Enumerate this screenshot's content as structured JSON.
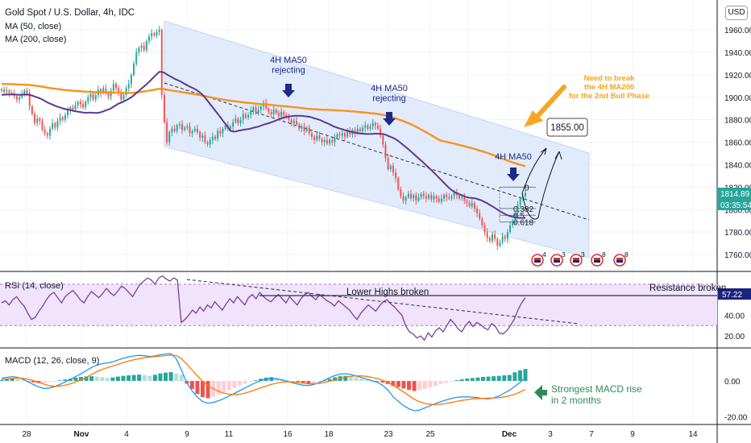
{
  "header": {
    "title": "Gold Spot / U.S. Dollar, 4h, IDC",
    "ma50_label": "MA (50, close)",
    "ma200_label": "MA (200, close)",
    "currency_button": "USD"
  },
  "colors": {
    "up": "#26a69a",
    "down": "#ef5350",
    "ma50": "#5b3a8f",
    "ma200": "#f7931a",
    "channel": "#dde8fb",
    "rsi_band": "#f0e3fb",
    "rsi_line": "#7b3fa0",
    "macd_line": "#2196f3",
    "signal_line": "#ff7700",
    "arrow_blue": "#1a2a8a",
    "annotation_orange": "#f5a623",
    "annotation_green": "#2e8b57"
  },
  "chart_data": [
    {
      "type": "candlestick",
      "title": "Gold Spot / U.S. Dollar, 4h, IDC",
      "x_ticks": [
        "28",
        "Nov",
        "4",
        "9",
        "11",
        "16",
        "18",
        "23",
        "25",
        "Dec",
        "3",
        "7",
        "9",
        "14"
      ],
      "y_ticks": [
        1960,
        1940,
        1920,
        1900,
        1880,
        1860,
        1840,
        1820,
        1800,
        1780,
        1760
      ],
      "y_tick_labels": [
        "1960.00",
        "1940.00",
        "1920.00",
        "1900.00",
        "1880.00",
        "1860.00",
        "1840.00",
        "1820.00",
        "1800.00",
        "1780.00",
        "1760.00"
      ],
      "ylim": [
        1750,
        1978
      ],
      "last_price": "1814.89",
      "countdown": "03:35:54",
      "close_series": [
        1907,
        1905,
        1906,
        1904,
        1903,
        1901,
        1898,
        1900,
        1903,
        1906,
        1904,
        1892,
        1885,
        1877,
        1881,
        1879,
        1871,
        1868,
        1866,
        1872,
        1877,
        1873,
        1879,
        1882,
        1880,
        1884,
        1888,
        1891,
        1889,
        1893,
        1896,
        1894,
        1891,
        1896,
        1900,
        1903,
        1898,
        1902,
        1907,
        1904,
        1908,
        1904,
        1901,
        1906,
        1912,
        1908,
        1904,
        1898,
        1902,
        1908,
        1912,
        1920,
        1930,
        1940,
        1944,
        1946,
        1942,
        1950,
        1954,
        1957,
        1955,
        1958,
        1960,
        1902,
        1878,
        1860,
        1869,
        1872,
        1870,
        1875,
        1876,
        1871,
        1873,
        1874,
        1868,
        1870,
        1872,
        1869,
        1864,
        1866,
        1860,
        1858,
        1862,
        1865,
        1863,
        1870,
        1868,
        1872,
        1875,
        1872,
        1874,
        1878,
        1881,
        1877,
        1880,
        1885,
        1882,
        1884,
        1888,
        1891,
        1886,
        1889,
        1892,
        1895,
        1890,
        1887,
        1885,
        1889,
        1886,
        1883,
        1887,
        1884,
        1882,
        1880,
        1877,
        1879,
        1876,
        1872,
        1874,
        1870,
        1873,
        1868,
        1865,
        1862,
        1866,
        1863,
        1860,
        1862,
        1859,
        1862,
        1860,
        1864,
        1867,
        1866,
        1868,
        1865,
        1870,
        1867,
        1871,
        1868,
        1872,
        1870,
        1873,
        1875,
        1872,
        1874,
        1877,
        1875,
        1872,
        1866,
        1858,
        1846,
        1836,
        1839,
        1833,
        1828,
        1818,
        1812,
        1808,
        1811,
        1814,
        1810,
        1813,
        1808,
        1811,
        1814,
        1812,
        1810,
        1813,
        1809,
        1812,
        1810,
        1807,
        1810,
        1813,
        1811,
        1810,
        1812,
        1815,
        1813,
        1810,
        1811,
        1808,
        1806,
        1803,
        1806,
        1801,
        1797,
        1792,
        1786,
        1780,
        1775,
        1772,
        1778,
        1774,
        1768,
        1771,
        1776,
        1774,
        1780,
        1786,
        1790,
        1797,
        1804,
        1810,
        1812,
        1815
      ],
      "series": [
        {
          "name": "MA (50, close)"
        },
        {
          "name": "MA (200, close)"
        }
      ],
      "annotations": {
        "ma50_reject_1": "4H MA50\nrejecting",
        "ma50_reject_2": "4H MA50\nrejecting",
        "ma50_label_3": "4H MA50",
        "ma200_note": "Need to break\nthe 4H MA200\nfor the 2nd Bull Phase",
        "target": "1855.00",
        "fib_0": "0",
        "fib_382": "0.382",
        "fib_5": "0.5",
        "fib_618": "0.618"
      },
      "fib_levels": [
        {
          "label": "0",
          "value": 1820
        },
        {
          "label": "0.382",
          "value": 1801
        },
        {
          "label": "0.5",
          "value": 1795
        },
        {
          "label": "0.618",
          "value": 1789
        }
      ],
      "event_numbers": [
        "4",
        "3",
        "3",
        "8",
        "8"
      ]
    },
    {
      "type": "line",
      "title": "RSI (14, close)",
      "y_ticks": [
        60,
        40,
        20
      ],
      "y_tick_labels": [
        "60.00",
        "40.00",
        "20.00"
      ],
      "band": [
        30,
        70
      ],
      "ylim": [
        10,
        80
      ],
      "last_value": "57.22",
      "annotations": {
        "lower_highs": "Lower Highs broken",
        "resistance": "Resistance broken"
      },
      "values": [
        52,
        54,
        50,
        55,
        58,
        53,
        49,
        42,
        36,
        38,
        44,
        49,
        55,
        60,
        62,
        57,
        52,
        58,
        61,
        64,
        60,
        55,
        52,
        58,
        63,
        60,
        57,
        61,
        66,
        62,
        59,
        63,
        68,
        66,
        62,
        58,
        64,
        70,
        73,
        76,
        74,
        70,
        76,
        78,
        75,
        73,
        76,
        74,
        33,
        36,
        40,
        45,
        42,
        48,
        44,
        50,
        47,
        53,
        49,
        45,
        51,
        56,
        52,
        58,
        54,
        50,
        57,
        60,
        56,
        62,
        58,
        55,
        53,
        57,
        60,
        56,
        52,
        58,
        54,
        50,
        56,
        60,
        62,
        58,
        55,
        60,
        57,
        54,
        52,
        49,
        54,
        51,
        48,
        45,
        40,
        36,
        42,
        46,
        50,
        47,
        44,
        49,
        53,
        55,
        51,
        48,
        44,
        40,
        30,
        24,
        22,
        18,
        20,
        16,
        23,
        19,
        25,
        28,
        24,
        30,
        36,
        32,
        27,
        24,
        30,
        34,
        29,
        33,
        31,
        28,
        26,
        32,
        29,
        23,
        22,
        25,
        30,
        36,
        45,
        52,
        57
      ]
    },
    {
      "type": "bar",
      "title": "MACD (12, 26, close, 9)",
      "y_ticks": [
        0,
        -20
      ],
      "y_tick_labels": [
        "0.00",
        "-20.00"
      ],
      "ylim": [
        -22,
        17
      ],
      "annotation": "Strongest MACD rise\nin 2 months",
      "histogram": [
        0.5,
        0.8,
        1.2,
        0.9,
        0.4,
        -0.3,
        -0.8,
        -1.2,
        -1.0,
        -0.6,
        -0.2,
        0.3,
        0.8,
        1.3,
        1.8,
        2.2,
        2.5,
        2.6,
        2.3,
        2.0,
        1.6,
        1.9,
        2.4,
        2.8,
        3.1,
        3.3,
        3.5,
        3.2,
        2.9,
        3.4,
        4.2,
        4.6,
        4.9,
        4.1,
        3.5,
        -1.5,
        -4.5,
        -7.2,
        -9.0,
        -9.6,
        -8.8,
        -7.4,
        -6.2,
        -5.0,
        -3.8,
        -2.6,
        -1.6,
        -0.6,
        0.4,
        1.2,
        1.8,
        2.1,
        1.8,
        1.2,
        0.6,
        0.1,
        -0.6,
        -1.4,
        -1.9,
        -1.5,
        -0.8,
        0.2,
        1.1,
        2.0,
        2.6,
        2.8,
        2.5,
        1.9,
        1.2,
        0.5,
        0.0,
        -0.4,
        -0.9,
        -1.7,
        -2.9,
        -3.4,
        -4.2,
        -5.0,
        -5.6,
        -5.1,
        -4.4,
        -3.6,
        -2.7,
        -1.8,
        -1.0,
        -0.2,
        0.4,
        0.9,
        1.3,
        1.6,
        1.9,
        2.2,
        2.4,
        2.6,
        2.8,
        3.1,
        3.3,
        4.8,
        5.9,
        6.6
      ],
      "macd": [
        1.5,
        2.0,
        2.4,
        2.0,
        1.0,
        -0.5,
        -2.0,
        -3.3,
        -4.2,
        -4.0,
        -3.2,
        -2.0,
        -0.6,
        0.8,
        2.4,
        4.0,
        5.8,
        7.5,
        8.8,
        9.6,
        10.0,
        10.6,
        11.6,
        12.6,
        13.4,
        13.9,
        14.2,
        14.0,
        13.6,
        13.9,
        14.6,
        15.0,
        15.2,
        12.4,
        6.0,
        -1.0,
        -5.5,
        -9.0,
        -11.5,
        -12.4,
        -12.0,
        -11.0,
        -9.8,
        -8.4,
        -7.0,
        -5.4,
        -3.9,
        -2.4,
        -1.0,
        0.2,
        1.0,
        1.4,
        1.1,
        0.5,
        -0.3,
        -1.0,
        -1.8,
        -2.4,
        -2.6,
        -2.0,
        -1.0,
        0.4,
        1.8,
        3.0,
        3.8,
        4.0,
        3.6,
        2.8,
        1.9,
        1.0,
        0.2,
        -0.8,
        -2.4,
        -5.0,
        -8.8,
        -11.4,
        -13.8,
        -15.5,
        -16.6,
        -16.2,
        -15.0,
        -13.8,
        -12.6,
        -11.6,
        -10.6,
        -9.8,
        -9.2,
        -8.9,
        -8.8,
        -9.0,
        -9.4,
        -9.8,
        -10.0,
        -9.4,
        -8.4,
        -6.8,
        -5.2,
        -3.0,
        -0.8,
        1.8
      ],
      "signal": [
        0.8,
        1.1,
        1.4,
        1.6,
        1.5,
        1.0,
        0.2,
        -0.8,
        -1.8,
        -2.6,
        -3.0,
        -2.9,
        -2.4,
        -1.6,
        -0.6,
        0.6,
        2.0,
        3.6,
        5.1,
        6.4,
        7.4,
        8.3,
        9.2,
        10.2,
        11.0,
        11.8,
        12.4,
        12.9,
        13.3,
        13.6,
        13.8,
        14.1,
        14.4,
        14.1,
        12.4,
        9.4,
        6.0,
        2.8,
        -0.2,
        -2.6,
        -4.4,
        -5.8,
        -6.8,
        -7.4,
        -7.6,
        -7.4,
        -6.8,
        -5.9,
        -4.9,
        -3.8,
        -2.8,
        -1.9,
        -1.2,
        -0.7,
        -0.5,
        -0.6,
        -0.9,
        -1.2,
        -1.5,
        -1.6,
        -1.4,
        -0.9,
        -0.2,
        0.6,
        1.4,
        2.1,
        2.6,
        2.8,
        2.8,
        2.5,
        2.0,
        1.3,
        0.4,
        -0.8,
        -2.4,
        -4.2,
        -6.2,
        -8.2,
        -10.2,
        -11.6,
        -12.6,
        -13.0,
        -13.2,
        -13.0,
        -12.6,
        -12.0,
        -11.4,
        -10.9,
        -10.4,
        -10.0,
        -9.8,
        -9.7,
        -9.6,
        -9.5,
        -9.3,
        -8.9,
        -8.3,
        -7.4,
        -6.2,
        -4.8
      ]
    }
  ],
  "rsi_header": "RSI (14, close)",
  "macd_header": "MACD (12, 26, close, 9)"
}
